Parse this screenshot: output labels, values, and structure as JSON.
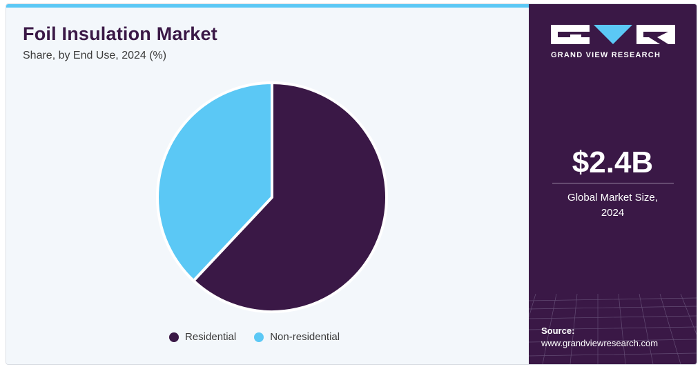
{
  "header": {
    "title": "Foil Insulation Market",
    "subtitle": "Share, by End Use, 2024 (%)"
  },
  "colors": {
    "accent_bar": "#5bc8f5",
    "residential": "#3a1846",
    "non_residential": "#5bc8f5",
    "panel": "#3a1846"
  },
  "chart_data": {
    "type": "pie",
    "categories": [
      "Residential",
      "Non-residential"
    ],
    "values": [
      62,
      38
    ],
    "legend": "bottom"
  },
  "legend": {
    "items": [
      "Residential",
      "Non-residential"
    ]
  },
  "brand": {
    "name": "GRAND VIEW RESEARCH",
    "icon": "gvr-logo-icon"
  },
  "stat": {
    "value": "$2.4B",
    "label_line1": "Global Market Size,",
    "label_line2": "2024"
  },
  "source": {
    "label": "Source:",
    "url": "www.grandviewresearch.com"
  }
}
